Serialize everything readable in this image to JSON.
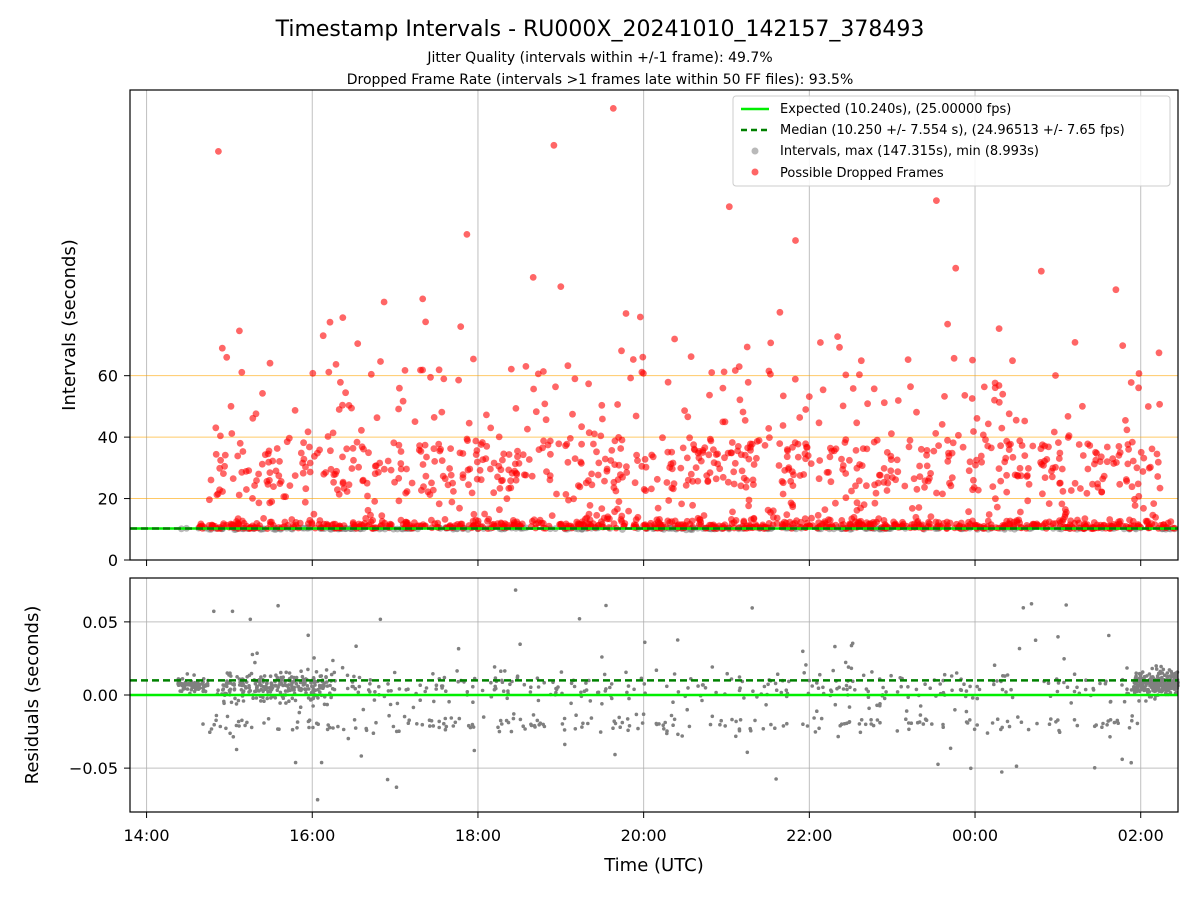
{
  "title": "Timestamp Intervals - RU000X_20241010_142157_378493",
  "subtitle_line1": "Jitter Quality (intervals within +/-1 frame): 49.7%",
  "subtitle_line2": "Dropped Frame Rate (intervals >1 frames late within 50 FF files): 93.5%",
  "colors": {
    "expected": "#00ee00",
    "median": "#008000",
    "intervals": "#808080",
    "dropped": "#ff0000",
    "threshold": "#ffa500",
    "grid": "#b0b0b0"
  },
  "chart_data": [
    {
      "type": "scatter",
      "panel": "top",
      "ylabel": "Intervals (seconds)",
      "xlim": [
        "13:48",
        "02:27"
      ],
      "ylim": [
        0,
        153
      ],
      "yticks": [
        "0",
        "20",
        "40",
        "60"
      ],
      "grid": "x",
      "threshold_lines": [
        20,
        40,
        60
      ],
      "expected": 10.24,
      "median": 10.25,
      "time_range": [
        "14:22",
        "02:27"
      ],
      "legend_position": "top-right",
      "legend": [
        {
          "label": "Expected (10.240s), (25.00000 fps)",
          "style": "line"
        },
        {
          "label": "Median (10.250 +/- 7.554 s), (24.96513 +/- 7.65 fps)",
          "style": "dashed"
        },
        {
          "label": "Intervals, max (147.315s), min (8.993s)",
          "style": "gray-dot"
        },
        {
          "label": "Possible Dropped Frames",
          "style": "red-dot"
        }
      ],
      "dropped_highlights": [
        {
          "t": "14:52",
          "v": 133
        },
        {
          "t": "14:58",
          "v": 66
        },
        {
          "t": "17:20",
          "v": 85
        },
        {
          "t": "17:52",
          "v": 106
        },
        {
          "t": "18:40",
          "v": 92
        },
        {
          "t": "18:55",
          "v": 135
        },
        {
          "t": "19:38",
          "v": 147
        },
        {
          "t": "21:02",
          "v": 115
        },
        {
          "t": "21:50",
          "v": 104
        },
        {
          "t": "23:32",
          "v": 117
        },
        {
          "t": "23:46",
          "v": 95
        },
        {
          "t": "00:48",
          "v": 94
        },
        {
          "t": "01:42",
          "v": 88
        },
        {
          "t": "16:52",
          "v": 84
        },
        {
          "t": "19:00",
          "v": 89
        }
      ]
    },
    {
      "type": "scatter",
      "panel": "bottom",
      "xlabel": "Time (UTC)",
      "ylabel": "Residuals (seconds)",
      "xticks": [
        "14:00",
        "16:00",
        "18:00",
        "20:00",
        "22:00",
        "00:00",
        "02:00"
      ],
      "yticks": [
        "0.05",
        "0.00",
        "−0.05"
      ],
      "ylim": [
        -0.08,
        0.08
      ],
      "grid": "both",
      "expected": 0.0,
      "median": 0.01
    }
  ]
}
